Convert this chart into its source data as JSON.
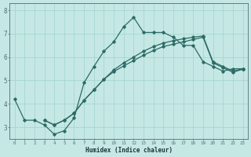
{
  "xlabel": "Humidex (Indice chaleur)",
  "background_color": "#c5e8e5",
  "line_color": "#2d6b65",
  "grid_color": "#a8d5d0",
  "xlim_min": -0.5,
  "xlim_max": 23.5,
  "ylim_min": 2.5,
  "ylim_max": 8.3,
  "xticks": [
    0,
    1,
    2,
    3,
    4,
    5,
    6,
    7,
    8,
    9,
    10,
    11,
    12,
    13,
    14,
    15,
    16,
    17,
    18,
    19,
    20,
    21,
    22,
    23
  ],
  "yticks": [
    3,
    4,
    5,
    6,
    7,
    8
  ],
  "line1_x": [
    0,
    1,
    2,
    3,
    4,
    5,
    6,
    7,
    8,
    9,
    10,
    11,
    12,
    13,
    14,
    15,
    16,
    17,
    18,
    19,
    20,
    21,
    22,
    23
  ],
  "line1_y": [
    4.2,
    3.3,
    3.3,
    3.1,
    2.7,
    2.85,
    3.4,
    4.9,
    5.6,
    6.25,
    6.65,
    7.3,
    7.7,
    7.05,
    7.05,
    7.05,
    6.85,
    6.5,
    6.5,
    5.8,
    5.6,
    5.4,
    5.5,
    5.5
  ],
  "line2_x": [
    3,
    4,
    5,
    6,
    7,
    8,
    9,
    10,
    11,
    12,
    13,
    14,
    15,
    16,
    17,
    18,
    19,
    20,
    21,
    22,
    23
  ],
  "line2_y": [
    3.3,
    3.1,
    3.3,
    3.6,
    4.15,
    4.6,
    5.05,
    5.45,
    5.75,
    6.0,
    6.25,
    6.45,
    6.6,
    6.7,
    6.78,
    6.85,
    6.9,
    5.8,
    5.6,
    5.4,
    5.5
  ],
  "line3_x": [
    3,
    4,
    5,
    6,
    7,
    8,
    9,
    10,
    11,
    12,
    13,
    14,
    15,
    16,
    17,
    18,
    19,
    20,
    21,
    22,
    23
  ],
  "line3_y": [
    3.3,
    3.1,
    3.3,
    3.6,
    4.15,
    4.6,
    5.05,
    5.38,
    5.62,
    5.85,
    6.08,
    6.28,
    6.45,
    6.55,
    6.65,
    6.75,
    6.85,
    5.75,
    5.55,
    5.35,
    5.48
  ]
}
